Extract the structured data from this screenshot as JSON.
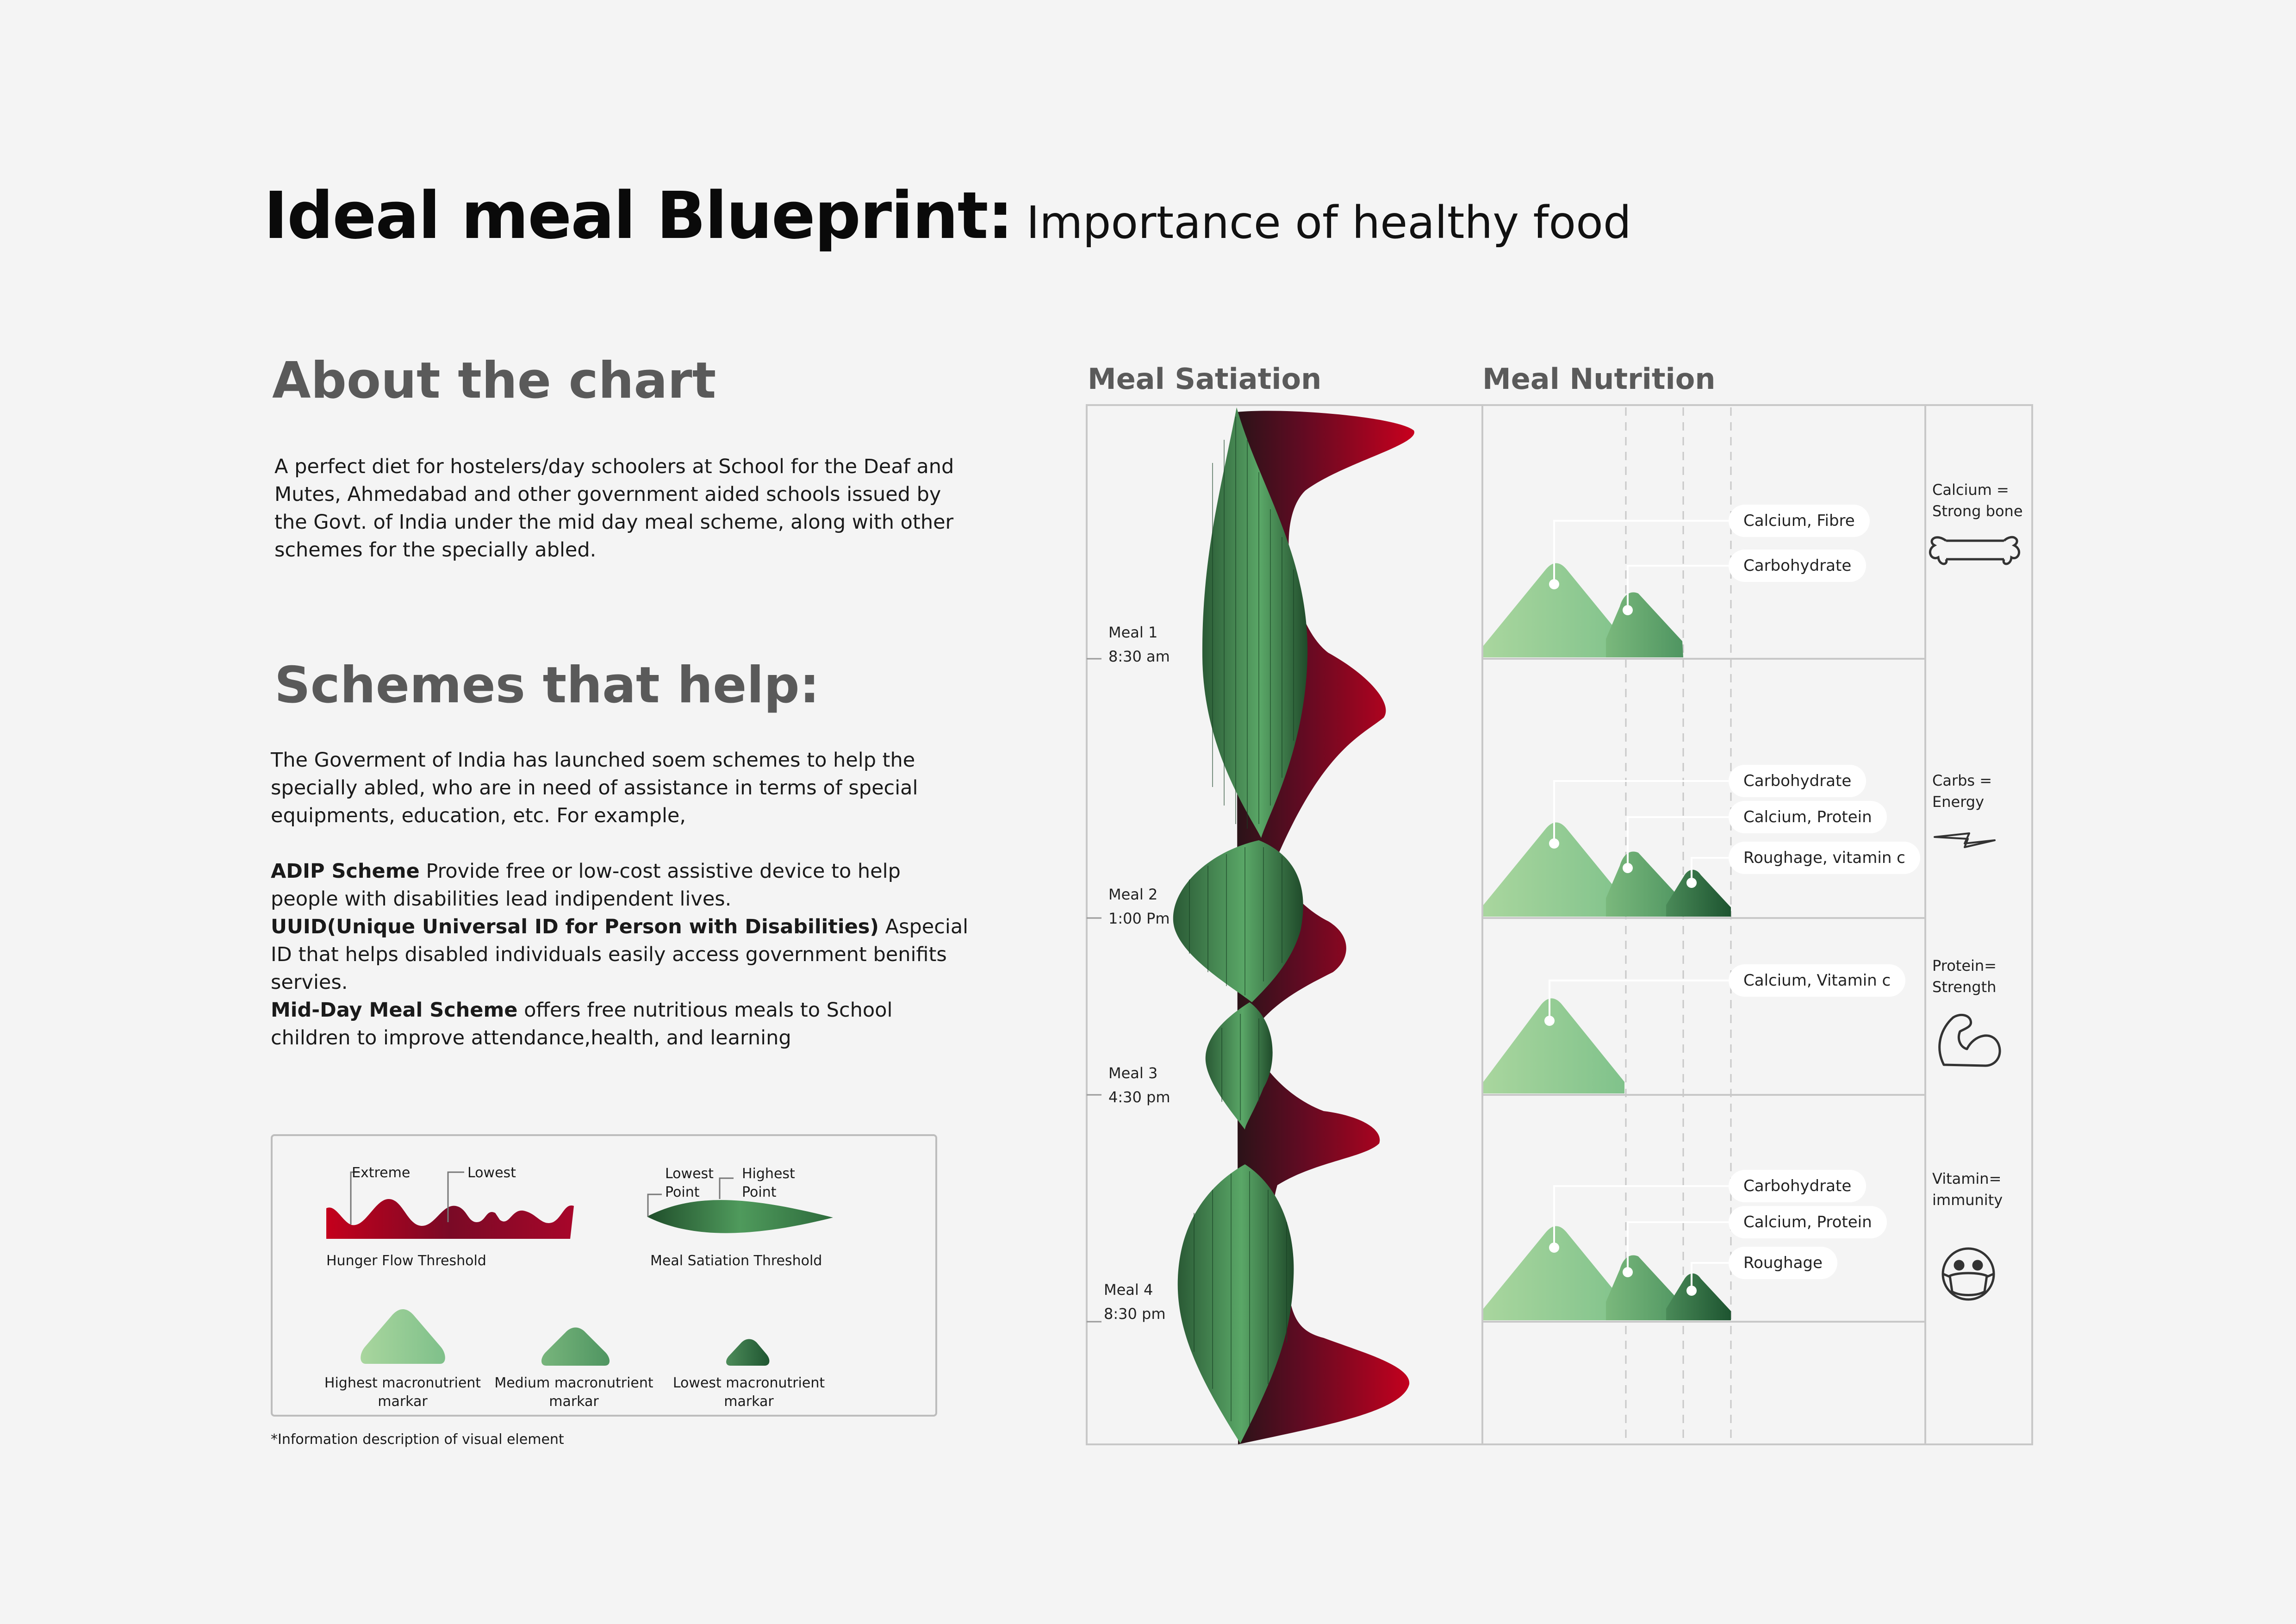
{
  "title": {
    "main": "Ideal meal Blueprint:",
    "sub": "Importance of healthy food"
  },
  "about": {
    "heading": "About the chart",
    "text": "A perfect diet for hostelers/day schoolers at School for the Deaf and Mutes, Ahmedabad and other government aided schools issued by the Govt. of India under the mid day meal scheme, along with other schemes for the specially abled."
  },
  "schemes": {
    "heading": "Schemes that help:",
    "intro": "The Goverment of India has launched soem schemes to help the specially abled, who are in need of assistance in terms of special equipments, education, etc. For example,",
    "items": [
      {
        "name": "ADIP Scheme",
        "text": " Provide free or low-cost assistive device to help people with disabilities lead indipendent lives."
      },
      {
        "name": "UUID(Unique Universal ID for Person with Disabilities)",
        "text": " Aspecial ID that helps disabled individuals easily access government benifits servies."
      },
      {
        "name": "Mid-Day Meal Scheme",
        "text": " offers free nutritious meals to School children to improve attendance,health, and learning"
      }
    ]
  },
  "legend": {
    "extreme": "Extreme",
    "lowest": "Lowest",
    "hunger_caption": "Hunger Flow Threshold",
    "lowest_point": [
      "Lowest",
      "Point"
    ],
    "highest_point": [
      "Highest",
      "Point"
    ],
    "satiation_caption": "Meal Satiation Threshold",
    "markers": [
      {
        "line1": "Highest macronutrient",
        "line2": "markar"
      },
      {
        "line1": "Medium macronutrient",
        "line2": "markar"
      },
      {
        "line1": "Lowest macronutrient",
        "line2": "markar"
      }
    ],
    "footnote": "*Information description of visual element"
  },
  "chart": {
    "satiation_header": "Meal Satiation",
    "nutrition_header": "Meal Nutrition",
    "colors": {
      "green_light": "#a6d49b",
      "green_mid": "#5fa06a",
      "green_dark": "#2d6b3c",
      "red": "#c4001c",
      "maroon": "#4a0f1f"
    },
    "meals": [
      {
        "name": "Meal 1",
        "time": "8:30 am",
        "labels": [
          "Calcium, Fibre",
          "Carbohydrate"
        ],
        "markers": 2
      },
      {
        "name": "Meal 2",
        "time": "1:00 Pm",
        "labels": [
          "Carbohydrate",
          "Calcium, Protein",
          "Roughage, vitamin c"
        ],
        "markers": 3
      },
      {
        "name": "Meal 3",
        "time": "4:30 pm",
        "labels": [
          "Calcium, Vitamin c"
        ],
        "markers": 1
      },
      {
        "name": "Meal 4",
        "time": "8:30 pm",
        "labels": [
          "Carbohydrate",
          "Calcium, Protein",
          "Roughage"
        ],
        "markers": 3
      }
    ],
    "benefits": [
      {
        "line1": "Calcium =",
        "line2": "Strong bone",
        "icon": "bone-icon"
      },
      {
        "line1": "Carbs =",
        "line2": "Energy",
        "icon": "lightning-icon"
      },
      {
        "line1": "Protein=",
        "line2": "Strength",
        "icon": "flexed-arm-icon"
      },
      {
        "line1": "Vitamin=",
        "line2": "immunity",
        "icon": "masked-face-icon"
      }
    ]
  }
}
